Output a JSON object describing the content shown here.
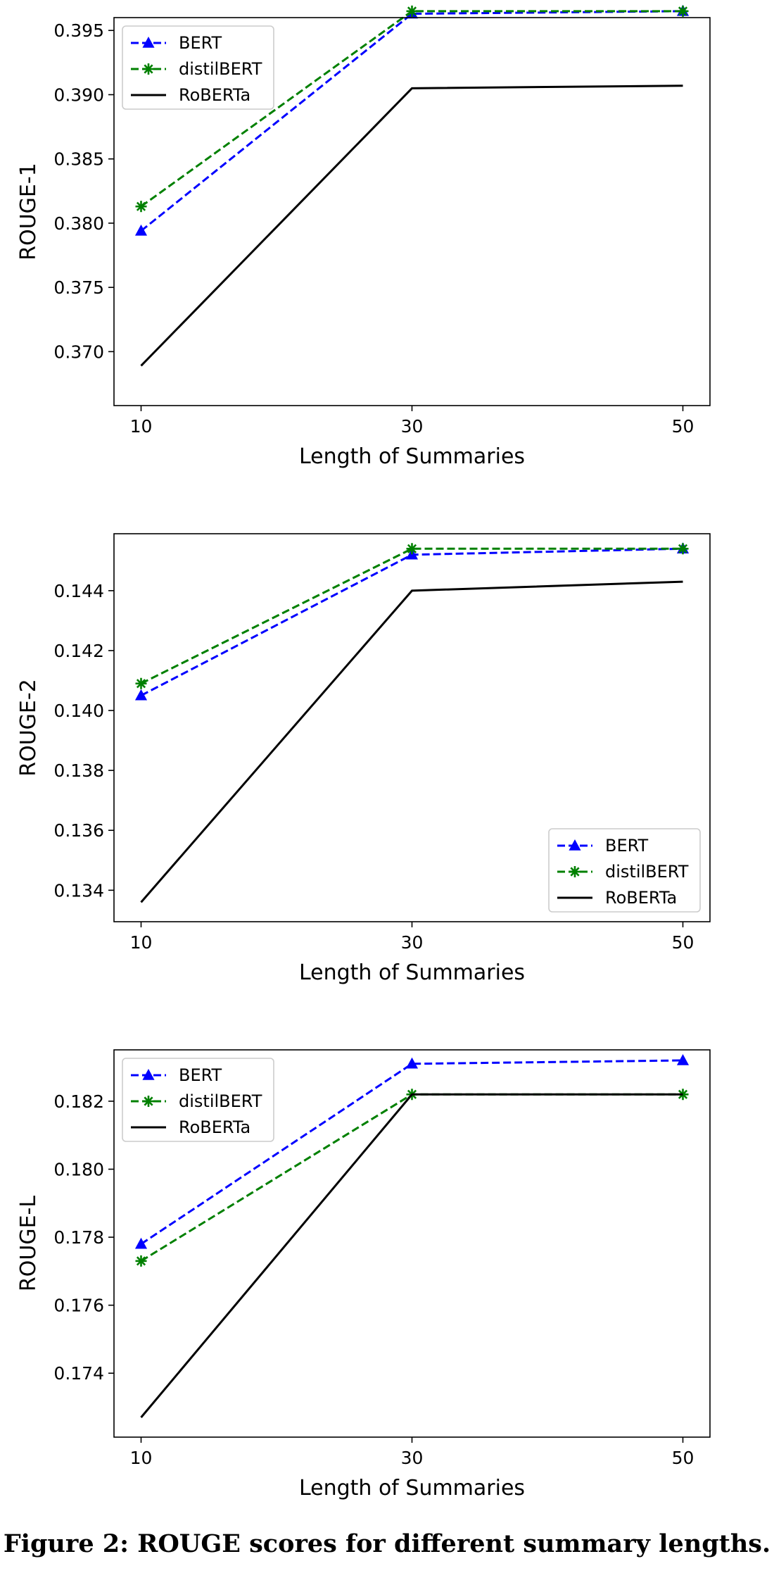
{
  "figure_caption": "Figure 2: ROUGE scores for different summary lengths.",
  "colors": {
    "BERT": "#0000ff",
    "distilBERT": "#008000",
    "RoBERTa": "#000000"
  },
  "chart_data": [
    {
      "type": "line",
      "xlabel": "Length of Summaries",
      "ylabel": "ROUGE-1",
      "x": [
        10,
        30,
        50
      ],
      "xticks": [
        "10",
        "30",
        "50"
      ],
      "xlim": [
        8,
        52
      ],
      "ylim": [
        0.3658,
        0.396
      ],
      "yticks": [
        "0.370",
        "0.375",
        "0.380",
        "0.385",
        "0.390",
        "0.395"
      ],
      "legend_position": "upper left",
      "series": [
        {
          "name": "BERT",
          "values": [
            0.3794,
            0.3963,
            0.3965
          ],
          "style": "dashed",
          "marker": "triangle"
        },
        {
          "name": "distilBERT",
          "values": [
            0.3813,
            0.3965,
            0.3965
          ],
          "style": "dashed",
          "marker": "star"
        },
        {
          "name": "RoBERTa",
          "values": [
            0.3689,
            0.3905,
            0.3907
          ],
          "style": "solid",
          "marker": "none"
        }
      ]
    },
    {
      "type": "line",
      "xlabel": "Length of Summaries",
      "ylabel": "ROUGE-2",
      "x": [
        10,
        30,
        50
      ],
      "xticks": [
        "10",
        "30",
        "50"
      ],
      "xlim": [
        8,
        52
      ],
      "ylim": [
        0.13295,
        0.1459
      ],
      "yticks": [
        "0.134",
        "0.136",
        "0.138",
        "0.140",
        "0.142",
        "0.144"
      ],
      "legend_position": "lower right",
      "series": [
        {
          "name": "BERT",
          "values": [
            0.1405,
            0.1452,
            0.1454
          ],
          "style": "dashed",
          "marker": "triangle"
        },
        {
          "name": "distilBERT",
          "values": [
            0.1409,
            0.1454,
            0.1454
          ],
          "style": "dashed",
          "marker": "star"
        },
        {
          "name": "RoBERTa",
          "values": [
            0.1336,
            0.144,
            0.1443
          ],
          "style": "solid",
          "marker": "none"
        }
      ]
    },
    {
      "type": "line",
      "xlabel": "Length of Summaries",
      "ylabel": "ROUGE-L",
      "x": [
        10,
        30,
        50
      ],
      "xticks": [
        "10",
        "30",
        "50"
      ],
      "xlim": [
        8,
        52
      ],
      "ylim": [
        0.17212,
        0.18351
      ],
      "yticks": [
        "0.174",
        "0.176",
        "0.178",
        "0.180",
        "0.182"
      ],
      "legend_position": "upper left",
      "series": [
        {
          "name": "BERT",
          "values": [
            0.1778,
            0.1831,
            0.1832
          ],
          "style": "dashed",
          "marker": "triangle"
        },
        {
          "name": "distilBERT",
          "values": [
            0.1773,
            0.1822,
            0.1822
          ],
          "style": "dashed",
          "marker": "star"
        },
        {
          "name": "RoBERTa",
          "values": [
            0.1727,
            0.1822,
            0.1822
          ],
          "style": "solid",
          "marker": "none"
        }
      ]
    }
  ]
}
